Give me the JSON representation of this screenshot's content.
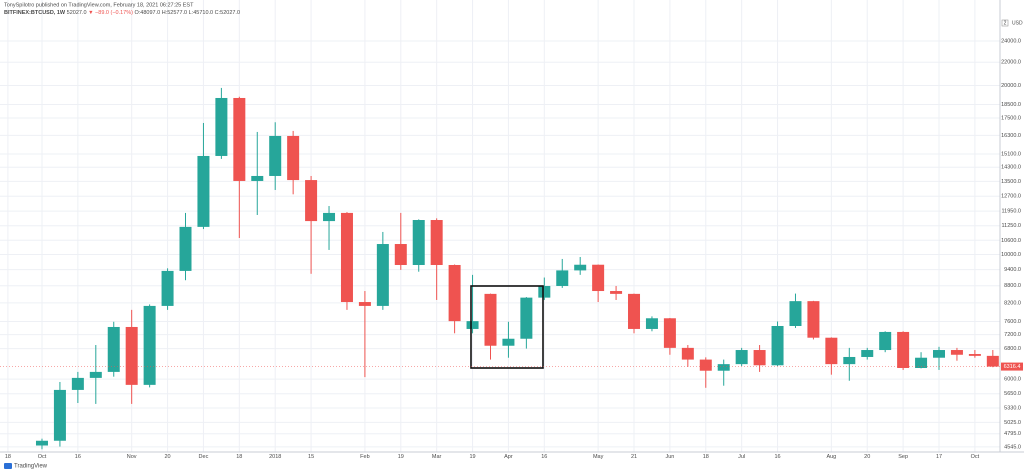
{
  "chart_data": {
    "type": "candlestick",
    "attribution": "TonySpilotro published on TradingView.com, February 18, 2021 06:27:25 EST",
    "title": "BITFINEX:BTCUSD, 1W",
    "quote": [
      "52027.0",
      "▼ −89.0 (−0.17%)",
      "O:48097.0",
      "H:52577.0",
      "L:45710.0",
      "C:52027.0"
    ],
    "currency": "USD",
    "axis_badge": "2",
    "logo": "TradingView",
    "up_color": "#26a69a",
    "down_color": "#ef5350",
    "log_scale": true,
    "grid": true,
    "open": [
      4570,
      4660,
      5740,
      6030,
      6180,
      7430,
      5860,
      8100,
      9350,
      11200,
      14980,
      19000,
      13520,
      13800,
      16260,
      13570,
      11470,
      11860,
      8230,
      8100,
      10440,
      9580,
      11520,
      9580,
      7370,
      8510,
      6880,
      7080,
      8380,
      8790,
      9370,
      9590,
      8610,
      8510,
      7370,
      7700,
      6820,
      6500,
      6210,
      6380,
      6760,
      6350,
      7460,
      8260,
      7110,
      6380,
      6570,
      6760,
      7280,
      6280,
      6550,
      6760,
      6650,
      6600
    ],
    "high": [
      4700,
      5930,
      6180,
      6900,
      7590,
      7970,
      8150,
      9450,
      11860,
      17150,
      19800,
      19100,
      16530,
      17200,
      16600,
      13800,
      12200,
      11900,
      8610,
      10970,
      11860,
      11550,
      11600,
      9600,
      9200,
      8520,
      7590,
      8400,
      9100,
      9820,
      9900,
      9600,
      8790,
      8520,
      7760,
      7710,
      6900,
      6560,
      6500,
      6820,
      6900,
      7600,
      8520,
      8270,
      7120,
      6820,
      6820,
      7300,
      7300,
      6700,
      6850,
      6820,
      6760,
      6760
    ],
    "low": [
      4500,
      4550,
      5440,
      5420,
      6060,
      5420,
      5800,
      7970,
      9000,
      11100,
      14800,
      10700,
      11760,
      13030,
      12800,
      9240,
      10190,
      7970,
      6050,
      7970,
      9390,
      9320,
      8300,
      7240,
      7240,
      6500,
      6550,
      6800,
      8300,
      8720,
      9200,
      8230,
      8300,
      7240,
      7300,
      6630,
      6310,
      5790,
      5840,
      6330,
      6180,
      6330,
      7400,
      7060,
      6110,
      5960,
      6500,
      6700,
      6230,
      6270,
      6230,
      6470,
      6550,
      6300
    ],
    "close": [
      4660,
      5740,
      6030,
      6180,
      7430,
      5860,
      8100,
      9350,
      11200,
      14980,
      19000,
      13520,
      13800,
      16260,
      13570,
      11470,
      11860,
      8230,
      8100,
      10440,
      9580,
      11520,
      9580,
      7610,
      7610,
      6880,
      7080,
      8380,
      8790,
      9370,
      9590,
      8610,
      8510,
      7370,
      7700,
      6820,
      6500,
      6210,
      6380,
      6760,
      6350,
      7460,
      8260,
      7110,
      6380,
      6570,
      6760,
      7280,
      6280,
      6550,
      6760,
      6630,
      6600,
      6316.4
    ],
    "xlim": [
      -2.34,
      53.4
    ],
    "xticks": [
      {
        "value": -1.9,
        "label": "18"
      },
      {
        "value": 0,
        "label": "Oct"
      },
      {
        "value": 2,
        "label": "16"
      },
      {
        "value": 5,
        "label": "Nov"
      },
      {
        "value": 7,
        "label": "20"
      },
      {
        "value": 9,
        "label": "Dec"
      },
      {
        "value": 11,
        "label": "18"
      },
      {
        "value": 13,
        "label": "2018"
      },
      {
        "value": 15,
        "label": "15"
      },
      {
        "value": 18,
        "label": "Feb"
      },
      {
        "value": 20,
        "label": "19"
      },
      {
        "value": 22,
        "label": "Mar"
      },
      {
        "value": 24,
        "label": "19"
      },
      {
        "value": 26,
        "label": "Apr"
      },
      {
        "value": 28,
        "label": "16"
      },
      {
        "value": 31,
        "label": "May"
      },
      {
        "value": 33,
        "label": "21"
      },
      {
        "value": 35,
        "label": "Jun"
      },
      {
        "value": 37,
        "label": "18"
      },
      {
        "value": 39,
        "label": "Jul"
      },
      {
        "value": 41,
        "label": "16"
      },
      {
        "value": 44,
        "label": "Aug"
      },
      {
        "value": 46,
        "label": "20"
      },
      {
        "value": 48,
        "label": "Sep"
      },
      {
        "value": 50,
        "label": "17"
      },
      {
        "value": 52,
        "label": "Oct"
      }
    ],
    "ylim": [
      4450,
      26700
    ],
    "yticks": [
      {
        "value": 24000,
        "label": "24000.0"
      },
      {
        "value": 22000,
        "label": "22000.0"
      },
      {
        "value": 20000,
        "label": "20000.0"
      },
      {
        "value": 18500,
        "label": "18500.0"
      },
      {
        "value": 17500,
        "label": "17500.0"
      },
      {
        "value": 16300,
        "label": "16300.0"
      },
      {
        "value": 15100,
        "label": "15100.0"
      },
      {
        "value": 14300,
        "label": "14300.0"
      },
      {
        "value": 13500,
        "label": "13500.0"
      },
      {
        "value": 12700,
        "label": "12700.0"
      },
      {
        "value": 11950,
        "label": "11950.0"
      },
      {
        "value": 11250,
        "label": "11250.0"
      },
      {
        "value": 10600,
        "label": "10600.0"
      },
      {
        "value": 10000,
        "label": "10000.0"
      },
      {
        "value": 9400,
        "label": "9400.0"
      },
      {
        "value": 8800,
        "label": "8800.0"
      },
      {
        "value": 8200,
        "label": "8200.0"
      },
      {
        "value": 7600,
        "label": "7600.0"
      },
      {
        "value": 7200,
        "label": "7200.0"
      },
      {
        "value": 6800,
        "label": "6800.0"
      },
      {
        "value": 6000,
        "label": "6000.0"
      },
      {
        "value": 5650,
        "label": "5650.0"
      },
      {
        "value": 5330,
        "label": "5330.0"
      },
      {
        "value": 5025,
        "label": "5025.0"
      },
      {
        "value": 4795,
        "label": "4795.0"
      },
      {
        "value": 4545,
        "label": "4545.0"
      }
    ]
  }
}
